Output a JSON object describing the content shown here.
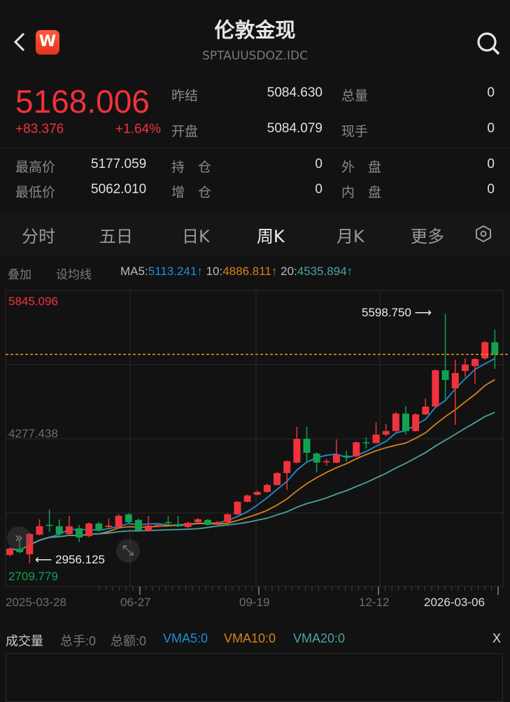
{
  "header": {
    "title": "伦敦金现",
    "code": "SPTAUUSDOZ.IDC",
    "logo_letter": "W",
    "back_icon": "chevron-left-icon",
    "search_icon": "search-icon"
  },
  "quote": {
    "price": "5168.006",
    "change": "+83.376",
    "change_pct": "+1.64%",
    "fields": [
      {
        "label": "昨结",
        "value": "5084.630"
      },
      {
        "label": "总量",
        "value": "0"
      },
      {
        "label": "开盘",
        "value": "5084.079"
      },
      {
        "label": "现手",
        "value": "0"
      },
      {
        "label": "最高价",
        "value": "5177.059"
      },
      {
        "label": "持　仓",
        "value": "0"
      },
      {
        "label": "外　盘",
        "value": "0"
      },
      {
        "label": "最低价",
        "value": "5062.010"
      },
      {
        "label": "增　仓",
        "value": "0"
      },
      {
        "label": "内　盘",
        "value": "0"
      }
    ]
  },
  "tabs": [
    {
      "label": "分时"
    },
    {
      "label": "五日"
    },
    {
      "label": "日K"
    },
    {
      "label": "周K",
      "active": true
    },
    {
      "label": "月K"
    },
    {
      "label": "更多"
    }
  ],
  "toolbar": {
    "overlay": "叠加",
    "set_ma": "设均线",
    "ma5_label": "MA5:",
    "ma5_value": "5113.241↑",
    "ma10_label": "10:",
    "ma10_value": "4886.811↑",
    "ma20_label": "20:",
    "ma20_value": "4535.894↑"
  },
  "colors": {
    "up": "#f0323c",
    "down": "#12a150",
    "ma5": "#1e8fd6",
    "ma10": "#d9801a",
    "ma20": "#4ba3a3",
    "last_price_line": "#e89a1c"
  },
  "chart_data": {
    "type": "candlestick",
    "period": "weekly",
    "ylim": [
      2709.779,
      5845.096
    ],
    "y_tick_labels": [
      "5845.096",
      "4277.438",
      "2709.779"
    ],
    "x_tick_labels": [
      "2025-03-28",
      "06-27",
      "09-19",
      "12-12",
      "2026-03-06"
    ],
    "high_marker": "5598.750",
    "low_marker": "2956.125",
    "last_price": 5168.006,
    "ohlc": [
      [
        3044,
        3125,
        3030,
        3111
      ],
      [
        3111,
        3192,
        3060,
        3074
      ],
      [
        3051,
        3280,
        2956.125,
        3266
      ],
      [
        3259,
        3420,
        3250,
        3348
      ],
      [
        3363,
        3526,
        3289,
        3355
      ],
      [
        3348,
        3420,
        3230,
        3266
      ],
      [
        3266,
        3459,
        3244,
        3348
      ],
      [
        3326,
        3360,
        3180,
        3229
      ],
      [
        3244,
        3390,
        3230,
        3377
      ],
      [
        3377,
        3395,
        3290,
        3303
      ],
      [
        3340,
        3429,
        3330,
        3355
      ],
      [
        3340,
        3475,
        3330,
        3459
      ],
      [
        3474,
        3485,
        3380,
        3392
      ],
      [
        3415,
        3430,
        3290,
        3303
      ],
      [
        3303,
        3459,
        3290,
        3355
      ],
      [
        3348,
        3375,
        3335,
        3363
      ],
      [
        3392,
        3459,
        3363,
        3385
      ],
      [
        3370,
        3459,
        3340,
        3348
      ],
      [
        3340,
        3395,
        3330,
        3385
      ],
      [
        3392,
        3435,
        3385,
        3422
      ],
      [
        3415,
        3425,
        3355,
        3363
      ],
      [
        3377,
        3405,
        3370,
        3392
      ],
      [
        3392,
        3485,
        3385,
        3474
      ],
      [
        3474,
        3615,
        3465,
        3607
      ],
      [
        3607,
        3685,
        3600,
        3674
      ],
      [
        3681,
        3725,
        3675,
        3711
      ],
      [
        3711,
        3800,
        3705,
        3785
      ],
      [
        3785,
        3925,
        3780,
        3911
      ],
      [
        3911,
        4045,
        3733,
        4037
      ],
      [
        4022,
        4400,
        4015,
        4274
      ],
      [
        4274,
        4400,
        4030,
        4126
      ],
      [
        4118,
        4130,
        3918,
        4022
      ],
      [
        4030,
        4060,
        3990,
        4037
      ],
      [
        4022,
        4267,
        4015,
        4104
      ],
      [
        4096,
        4150,
        4030,
        4089
      ],
      [
        4089,
        4245,
        4080,
        4237
      ],
      [
        4237,
        4290,
        4170,
        4230
      ],
      [
        4230,
        4450,
        4220,
        4319
      ],
      [
        4319,
        4430,
        4300,
        4356
      ],
      [
        4356,
        4560,
        4350,
        4541
      ],
      [
        4541,
        4620,
        4320,
        4356
      ],
      [
        4356,
        4545,
        4350,
        4533
      ],
      [
        4533,
        4700,
        4525,
        4615
      ],
      [
        4615,
        5010,
        4610,
        5000
      ],
      [
        5000,
        5598.75,
        4696,
        4897
      ],
      [
        4808,
        5111,
        4422,
        4971
      ],
      [
        4993,
        5126,
        4930,
        5060
      ],
      [
        5045,
        5130,
        4859,
        5119
      ],
      [
        5126,
        5310,
        5110,
        5297
      ],
      [
        5297,
        5430,
        5015,
        5168.006
      ]
    ]
  },
  "volume": {
    "title": "成交量",
    "total_hands": "总手:0",
    "total_amount": "总额:0",
    "vma5": "VMA5:0",
    "vma10": "VMA10:0",
    "vma20": "VMA20:0",
    "close": "X"
  }
}
